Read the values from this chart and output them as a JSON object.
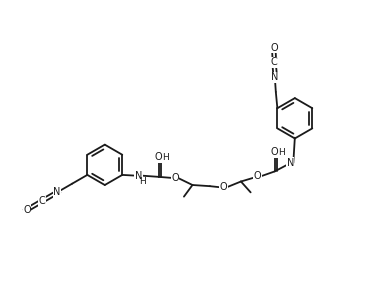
{
  "bg": "#ffffff",
  "lc": "#1a1a1a",
  "lw": 1.3,
  "fs": 7.0,
  "figsize": [
    3.88,
    2.87
  ],
  "dpi": 100,
  "xlim": [
    0,
    10
  ],
  "ylim": [
    0,
    7.4
  ]
}
